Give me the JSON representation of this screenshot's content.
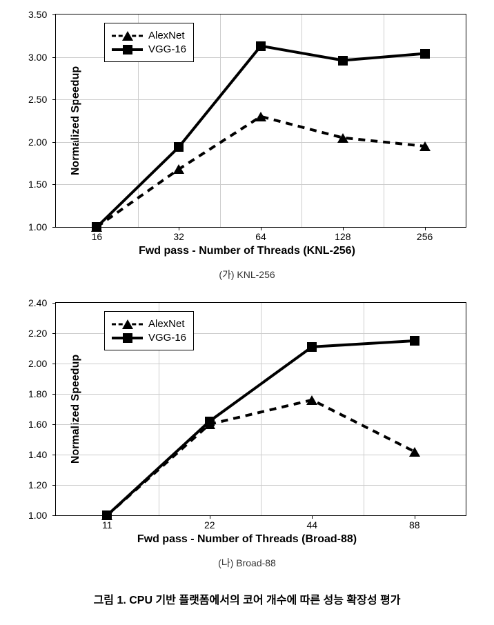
{
  "chart1": {
    "type": "line",
    "ylabel": "Normalized Speedup",
    "xlabel": "Fwd pass - Number of Threads (KNL-256)",
    "subcaption": "(가) KNL-256",
    "ylim": [
      1.0,
      3.5
    ],
    "ytick_step": 0.5,
    "yticks": [
      "1.00",
      "1.50",
      "2.00",
      "2.50",
      "3.00",
      "3.50"
    ],
    "categories": [
      "16",
      "32",
      "64",
      "128",
      "256"
    ],
    "x_positions": [
      10,
      30,
      50,
      70,
      90
    ],
    "series": [
      {
        "name": "AlexNet",
        "marker": "triangle",
        "line_style": "dashed",
        "color": "#000000",
        "values": [
          1.0,
          1.68,
          2.3,
          2.05,
          1.95
        ]
      },
      {
        "name": "VGG-16",
        "marker": "square",
        "line_style": "solid",
        "color": "#000000",
        "values": [
          1.0,
          1.94,
          3.13,
          2.96,
          3.04
        ]
      }
    ],
    "background_color": "#ffffff",
    "grid_color": "#cccccc",
    "label_fontsize": 16,
    "tick_fontsize": 14,
    "line_width": 4
  },
  "chart2": {
    "type": "line",
    "ylabel": "Normalized Speedup",
    "xlabel": "Fwd pass - Number of Threads (Broad-88)",
    "subcaption": "(나) Broad-88",
    "ylim": [
      1.0,
      2.4
    ],
    "ytick_step": 0.2,
    "yticks": [
      "1.00",
      "1.20",
      "1.40",
      "1.60",
      "1.80",
      "2.00",
      "2.20",
      "2.40"
    ],
    "categories": [
      "11",
      "22",
      "44",
      "88"
    ],
    "x_positions": [
      12.5,
      37.5,
      62.5,
      87.5
    ],
    "series": [
      {
        "name": "AlexNet",
        "marker": "triangle",
        "line_style": "dashed",
        "color": "#000000",
        "values": [
          1.0,
          1.6,
          1.76,
          1.42
        ]
      },
      {
        "name": "VGG-16",
        "marker": "square",
        "line_style": "solid",
        "color": "#000000",
        "values": [
          1.0,
          1.62,
          2.11,
          2.15
        ]
      }
    ],
    "background_color": "#ffffff",
    "grid_color": "#cccccc",
    "label_fontsize": 16,
    "tick_fontsize": 14,
    "line_width": 4
  },
  "main_caption": "그림 1. CPU 기반 플랫폼에서의 코어 개수에 따른 성능 확장성 평가"
}
